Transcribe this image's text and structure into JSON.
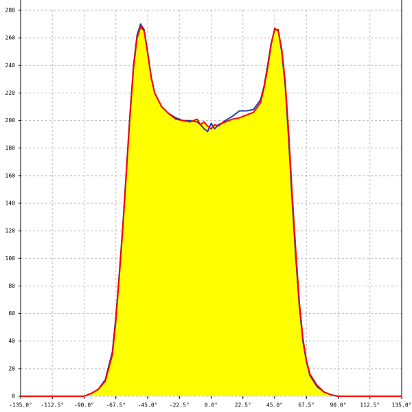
{
  "chart_data": {
    "type": "line",
    "x": [
      -135,
      -90,
      -85,
      -80,
      -75,
      -70,
      -67.5,
      -65,
      -62.5,
      -60,
      -57.5,
      -55,
      -52.5,
      -50,
      -47.5,
      -45,
      -42.5,
      -40,
      -35,
      -30,
      -25,
      -20,
      -15,
      -10,
      -7.5,
      -5,
      -2.5,
      0,
      2.5,
      5,
      7.5,
      10,
      15,
      20,
      25,
      30,
      35,
      37.5,
      40,
      42.5,
      45,
      47.5,
      50,
      52.5,
      55,
      57.5,
      60,
      62.5,
      65,
      67.5,
      70,
      75,
      80,
      85,
      90,
      135
    ],
    "series": [
      {
        "color": "#1c3fb0",
        "values": [
          0,
          0,
          2,
          5,
          12,
          32,
          58,
          90,
          125,
          165,
          205,
          240,
          262,
          270,
          266,
          250,
          232,
          220,
          210,
          205,
          202,
          200,
          200,
          199,
          197,
          194,
          192,
          198,
          194,
          197,
          198,
          200,
          203,
          207,
          207,
          208,
          215,
          225,
          240,
          256,
          266,
          266,
          250,
          225,
          185,
          140,
          100,
          65,
          40,
          25,
          15,
          7,
          3,
          1,
          0,
          0
        ]
      },
      {
        "color": "#ff0000",
        "values": [
          0,
          0,
          2,
          5,
          11,
          30,
          55,
          88,
          123,
          163,
          203,
          238,
          260,
          268,
          265,
          249,
          231,
          220,
          210,
          205,
          201,
          200,
          199,
          201,
          197,
          199,
          196,
          194,
          197,
          196,
          198,
          199,
          201,
          202,
          204,
          206,
          213,
          224,
          238,
          255,
          267,
          265,
          252,
          228,
          190,
          145,
          105,
          68,
          42,
          26,
          16,
          8,
          3,
          1,
          0,
          0
        ]
      }
    ],
    "area_color": "#ffff00",
    "xlim": [
      -135,
      135
    ],
    "xticks": [
      {
        "value": -135,
        "label": "-135.0°"
      },
      {
        "value": -112.5,
        "label": "-112.5°"
      },
      {
        "value": -90,
        "label": "-90.0°"
      },
      {
        "value": -67.5,
        "label": "-67.5°"
      },
      {
        "value": -45,
        "label": "-45.0°"
      },
      {
        "value": -22.5,
        "label": "-22.5°"
      },
      {
        "value": 0,
        "label": "0.0°"
      },
      {
        "value": 22.5,
        "label": "22.5°"
      },
      {
        "value": 45,
        "label": "45.0°"
      },
      {
        "value": 67.5,
        "label": "67.5°"
      },
      {
        "value": 90,
        "label": "90.0°"
      },
      {
        "value": 112.5,
        "label": "112.5°"
      },
      {
        "value": 135,
        "label": "135.0°"
      }
    ],
    "ylim": [
      0,
      280
    ],
    "yticks": [
      0,
      20,
      40,
      60,
      80,
      100,
      120,
      140,
      160,
      180,
      200,
      220,
      240,
      260,
      280
    ],
    "grid": true
  }
}
